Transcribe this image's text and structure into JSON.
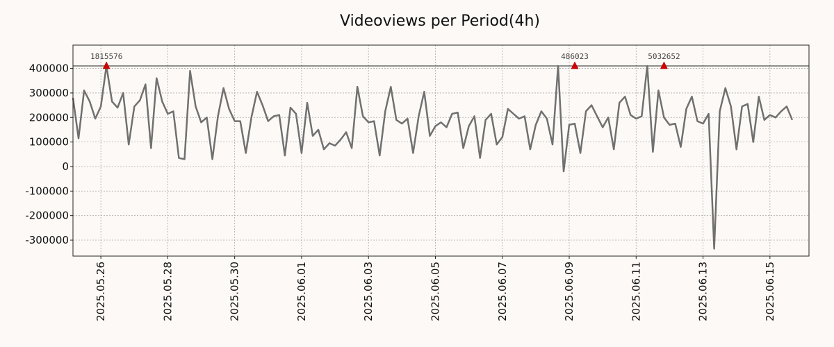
{
  "chart_data": {
    "type": "line",
    "title": "Videoviews per Period(4h)",
    "xlabel": "",
    "ylabel": "",
    "ylim": [
      -365000,
      495000
    ],
    "xlim": [
      "2025-05-25T04:00",
      "2025-06-16T04:00"
    ],
    "grid": true,
    "ytick_labels": [
      "400000",
      "300000",
      "200000",
      "100000",
      "0",
      "-100000",
      "-200000",
      "-300000"
    ],
    "ytick_values": [
      400000,
      300000,
      200000,
      100000,
      0,
      -100000,
      -200000,
      -300000
    ],
    "xtick_labels": [
      "2025.05.26",
      "2025.05.28",
      "2025.05.30",
      "2025.06.01",
      "2025.06.03",
      "2025.06.05",
      "2025.06.07",
      "2025.06.09",
      "2025.06.11",
      "2025.06.13",
      "2025.06.15"
    ],
    "xtick_values": [
      "2025-05-26",
      "2025-05-28",
      "2025-05-30",
      "2025-06-01",
      "2025-06-03",
      "2025-06-05",
      "2025-06-07",
      "2025-06-09",
      "2025-06-11",
      "2025-06-13",
      "2025-06-15"
    ],
    "reference_line": 410000,
    "series": [
      {
        "color": "#707070",
        "start": "2025-05-25T04:00",
        "step_hours": 4,
        "values": [
          280000,
          115000,
          310000,
          265000,
          195000,
          245000,
          410000,
          265000,
          240000,
          300000,
          90000,
          245000,
          270000,
          335000,
          75000,
          360000,
          265000,
          215000,
          225000,
          35000,
          30000,
          390000,
          245000,
          180000,
          200000,
          30000,
          205000,
          320000,
          235000,
          185000,
          185000,
          55000,
          200000,
          305000,
          250000,
          185000,
          205000,
          210000,
          45000,
          240000,
          215000,
          55000,
          260000,
          125000,
          150000,
          70000,
          95000,
          85000,
          110000,
          140000,
          75000,
          325000,
          205000,
          180000,
          185000,
          45000,
          225000,
          325000,
          190000,
          175000,
          195000,
          55000,
          205000,
          305000,
          125000,
          165000,
          180000,
          160000,
          215000,
          220000,
          75000,
          165000,
          205000,
          35000,
          190000,
          215000,
          90000,
          120000,
          235000,
          215000,
          195000,
          205000,
          70000,
          170000,
          225000,
          195000,
          90000,
          410000,
          -20000,
          170000,
          175000,
          55000,
          225000,
          250000,
          205000,
          160000,
          200000,
          70000,
          260000,
          285000,
          210000,
          195000,
          205000,
          410000,
          60000,
          310000,
          200000,
          170000,
          175000,
          80000,
          235000,
          285000,
          185000,
          175000,
          215000,
          -335000,
          225000,
          320000,
          245000,
          70000,
          245000,
          255000,
          100000,
          285000,
          190000,
          210000,
          200000,
          225000,
          245000,
          190000
        ]
      }
    ],
    "annotations": [
      {
        "text": "1815576",
        "x": "2025-05-26T04:00",
        "y": 410000,
        "marker_color": "#d40000"
      },
      {
        "text": "486023",
        "x": "2025-06-09T04:00",
        "y": 410000,
        "marker_color": "#d40000"
      },
      {
        "text": "5032652",
        "x": "2025-06-11T20:00",
        "y": 410000,
        "marker_color": "#d40000"
      }
    ]
  }
}
